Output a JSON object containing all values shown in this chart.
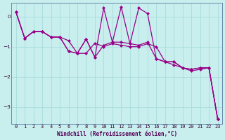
{
  "xlabel": "Windchill (Refroidissement éolien,°C)",
  "bg_color": "#c8eeee",
  "grid_color": "#a8dcdc",
  "line_color": "#990088",
  "spine_color": "#6688aa",
  "xlim": [
    -0.5,
    23.5
  ],
  "ylim": [
    -3.55,
    0.45
  ],
  "yticks": [
    0,
    -1,
    -2,
    -3
  ],
  "n_points": 24,
  "series1_y": [
    0.15,
    -0.72,
    -0.5,
    -0.5,
    -0.68,
    -0.68,
    -0.8,
    -1.22,
    -1.22,
    -0.88,
    -1.0,
    -0.9,
    -0.95,
    -1.0,
    -1.0,
    -0.9,
    -1.0,
    -1.5,
    -1.6,
    -1.7,
    -1.8,
    -1.75,
    -1.7,
    -3.4
  ],
  "series2_y": [
    0.15,
    -0.72,
    -0.5,
    -0.5,
    -0.68,
    -0.68,
    -1.15,
    -1.22,
    -0.75,
    -1.35,
    -0.95,
    -0.85,
    -0.85,
    -0.9,
    -0.95,
    -0.85,
    -1.4,
    -1.5,
    -1.5,
    -1.7,
    -1.75,
    -1.7,
    -1.7,
    -3.4
  ],
  "series3_y": [
    0.15,
    -0.72,
    -0.5,
    -0.5,
    -0.68,
    -0.68,
    -1.15,
    -1.22,
    -0.75,
    -1.35,
    0.28,
    -0.85,
    0.32,
    -0.9,
    0.28,
    0.1,
    -1.4,
    -1.5,
    -1.5,
    -1.7,
    -1.75,
    -1.7,
    -1.7,
    -3.4
  ],
  "tick_fontsize": 5.0,
  "xlabel_fontsize": 5.5,
  "xlabel_color": "#550055",
  "tick_color": "#330033"
}
